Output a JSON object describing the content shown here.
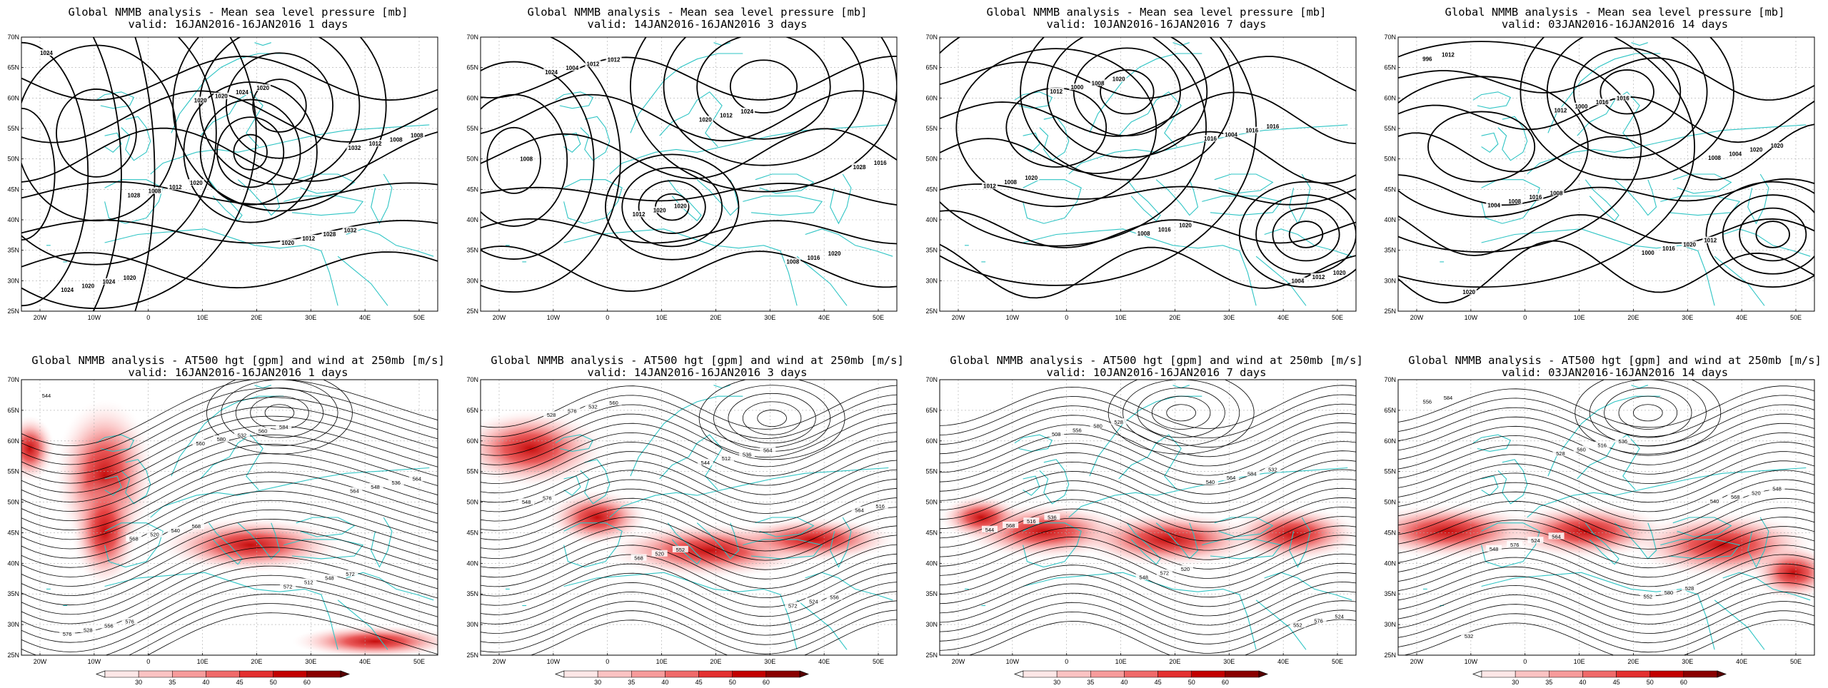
{
  "panels": [
    {
      "title": "Global NMMB analysis - Mean sea level pressure [mb]",
      "valid": "valid: 16JAN2016-16JAN2016   1 days"
    },
    {
      "title": "Global NMMB analysis - Mean sea level pressure [mb]",
      "valid": "valid: 14JAN2016-16JAN2016   3 days"
    },
    {
      "title": "Global NMMB analysis - Mean sea level pressure [mb]",
      "valid": "valid: 10JAN2016-16JAN2016   7 days"
    },
    {
      "title": "Global NMMB analysis - Mean sea level pressure [mb]",
      "valid": "valid: 03JAN2016-16JAN2016   14 days"
    },
    {
      "title": "Global NMMB analysis - AT500 hgt [gpm] and wind at 250mb [m/s]",
      "valid": "valid: 16JAN2016-16JAN2016   1 days"
    },
    {
      "title": "Global NMMB analysis - AT500 hgt [gpm] and wind at 250mb [m/s]",
      "valid": "valid: 14JAN2016-16JAN2016   3 days"
    },
    {
      "title": "Global NMMB analysis - AT500 hgt [gpm] and wind at 250mb [m/s]",
      "valid": "valid: 10JAN2016-16JAN2016   7 days"
    },
    {
      "title": "Global NMMB analysis - AT500 hgt [gpm] and wind at 250mb [m/s]",
      "valid": "valid: 03JAN2016-16JAN2016   14 days"
    }
  ],
  "lat_labels": [
    "70N",
    "65N",
    "60N",
    "55N",
    "50N",
    "45N",
    "40N",
    "35N",
    "30N",
    "25N"
  ],
  "lon_labels": [
    "20W",
    "10W",
    "0",
    "10E",
    "20E",
    "30E",
    "40E",
    "50E"
  ],
  "colorbar": {
    "ticks": [
      "30",
      "35",
      "40",
      "45",
      "50",
      "60"
    ],
    "colors": [
      "#fde7e7",
      "#fbc3c3",
      "#f79b9b",
      "#f06a6a",
      "#e43030",
      "#c30000",
      "#8a0000"
    ]
  },
  "colors": {
    "contour": "#000000",
    "coast": "#2ec4c4",
    "grid": "#aaaaaa",
    "frame": "#000000"
  },
  "mslp_labels": [
    [
      "1024",
      "1020",
      "1032",
      "1028",
      "1020",
      "1024",
      "1020",
      "1012",
      "1008",
      "1012",
      "1020",
      "1024",
      "1008",
      "1012",
      "1028",
      "1024",
      "1020",
      "1008",
      "1020",
      "1032",
      "1020"
    ],
    [
      "1024",
      "1020",
      "1028",
      "1012",
      "1008",
      "1004",
      "1012",
      "1016",
      "1020",
      "1016",
      "1012",
      "1024",
      "1008",
      "1020",
      "1020",
      "1012"
    ],
    [
      "1012",
      "1016",
      "1012",
      "1008",
      "1004",
      "1000",
      "1004",
      "1008",
      "1016",
      "1012",
      "1008",
      "1016",
      "1020",
      "1020",
      "1020",
      "1020",
      "1016"
    ],
    [
      "1012",
      "1008",
      "1004",
      "1000",
      "996",
      "1000",
      "1004",
      "1008",
      "1016",
      "1012",
      "1016",
      "1020",
      "1016",
      "1020",
      "1020",
      "1016",
      "1020",
      "1008",
      "1012"
    ]
  ],
  "hgt_labels": [
    [
      "544",
      "560",
      "564",
      "568",
      "572",
      "576",
      "580",
      "548",
      "520",
      "512",
      "528",
      "532",
      "536",
      "540",
      "548",
      "556",
      "560",
      "564",
      "568",
      "572",
      "576",
      "584"
    ],
    [
      "528",
      "544",
      "564",
      "568",
      "572",
      "576",
      "512",
      "516",
      "520",
      "524",
      "532",
      "536",
      "548",
      "552",
      "556",
      "560",
      "564",
      "576"
    ],
    [
      "508",
      "540",
      "544",
      "548",
      "552",
      "556",
      "564",
      "568",
      "572",
      "576",
      "580",
      "584",
      "516",
      "520",
      "524",
      "528",
      "532",
      "536"
    ],
    [
      "528",
      "540",
      "548",
      "552",
      "556",
      "560",
      "568",
      "576",
      "580",
      "584",
      "516",
      "520",
      "524",
      "528",
      "532",
      "536",
      "548",
      "564"
    ]
  ]
}
